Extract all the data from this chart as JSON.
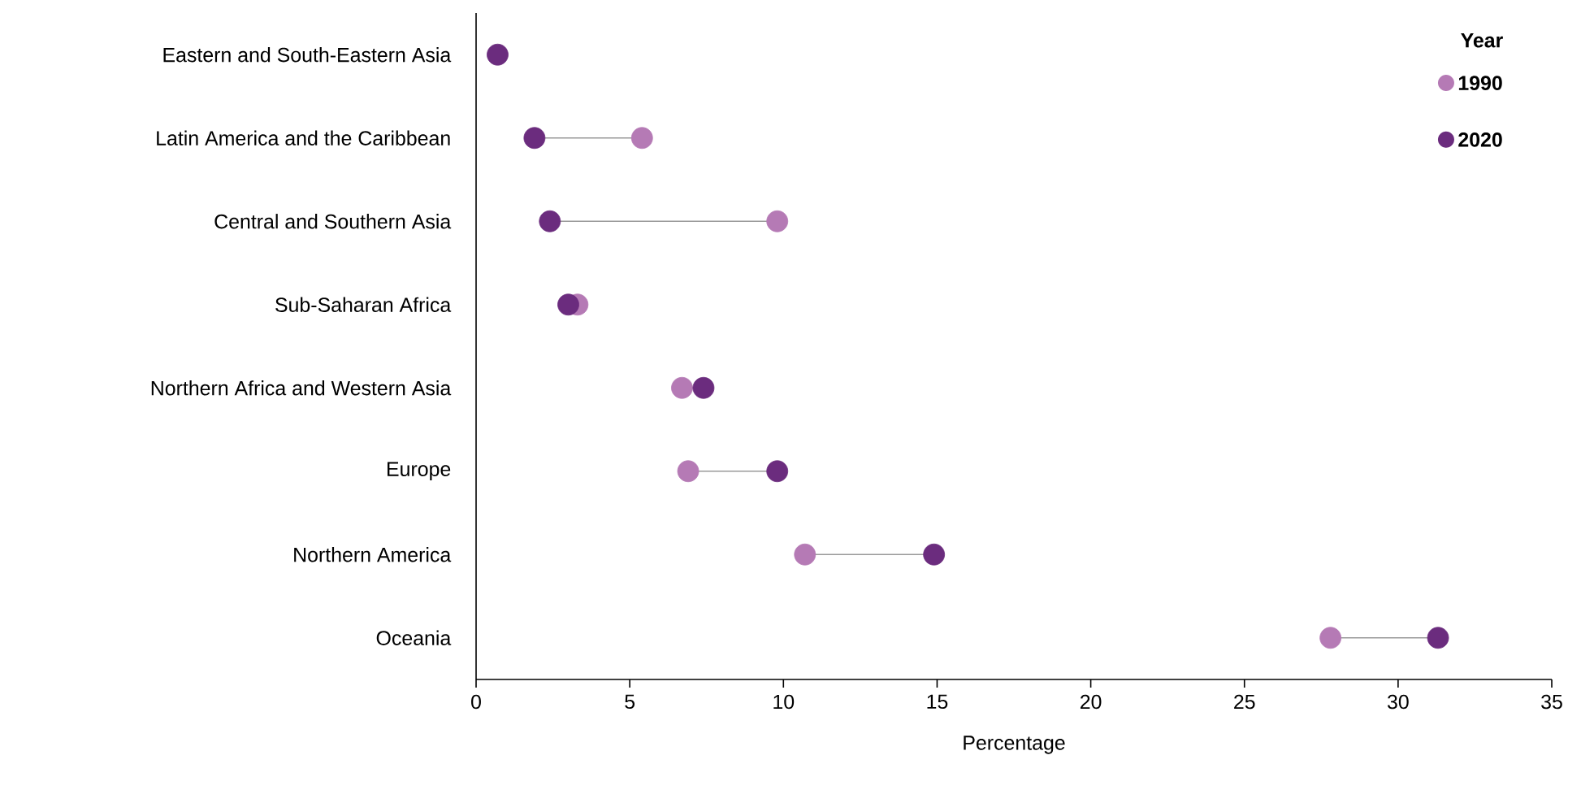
{
  "chart_data": {
    "type": "scatter",
    "orientation": "horizontal",
    "marker": "circle",
    "legend": "top right",
    "categories": [
      "Eastern and South-Eastern Asia",
      "Latin America and the Caribbean",
      "Central and Southern Asia",
      "Sub-Saharan Africa",
      "Northern Africa and Western Asia",
      "Europe",
      "Northern America",
      "Oceania"
    ],
    "series": [
      {
        "name": "1990",
        "color": "#b57ab5",
        "values": [
          null,
          5.4,
          9.8,
          3.3,
          6.7,
          6.9,
          10.7,
          27.8
        ]
      },
      {
        "name": "2020",
        "color": "#6b2c7e",
        "values": [
          0.7,
          1.9,
          2.4,
          3.0,
          7.4,
          9.8,
          14.9,
          31.3
        ]
      }
    ],
    "xlim": [
      0,
      35
    ],
    "xticks": [
      0,
      5,
      10,
      15,
      20,
      25,
      30,
      35
    ],
    "xlabel": "Percentage",
    "legend_title": "Year"
  }
}
